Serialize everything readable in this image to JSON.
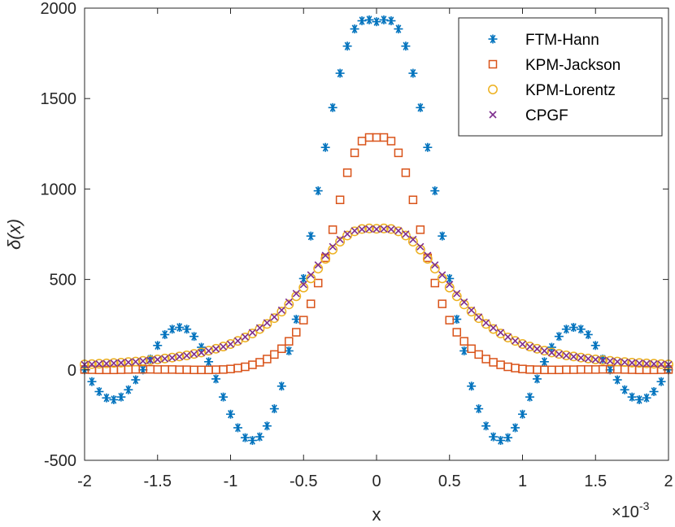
{
  "chart_data": {
    "type": "scatter",
    "title": "",
    "xlabel": "x",
    "ylabel": "δ(x)",
    "x_scale_label": "×10",
    "x_scale_exponent": "-3",
    "x_scale_factor": 0.001,
    "xlim": [
      -2,
      2
    ],
    "ylim": [
      -500,
      2000
    ],
    "xticks": [
      -2,
      -1.5,
      -1,
      -0.5,
      0,
      0.5,
      1,
      1.5,
      2
    ],
    "xtick_labels": [
      "-2",
      "-1.5",
      "-1",
      "-0.5",
      "0",
      "0.5",
      "1",
      "1.5",
      "2"
    ],
    "yticks": [
      -500,
      0,
      500,
      1000,
      1500,
      2000
    ],
    "ytick_labels": [
      "-500",
      "0",
      "500",
      "1000",
      "1500",
      "2000"
    ],
    "grid": false,
    "legend_position": "top-right",
    "series": [
      {
        "name": "FTM-Hann",
        "marker": "asterisk",
        "color": "#0072BD",
        "x": [
          -2.0,
          -1.95,
          -1.9,
          -1.85,
          -1.8,
          -1.75,
          -1.7,
          -1.65,
          -1.6,
          -1.55,
          -1.5,
          -1.45,
          -1.4,
          -1.35,
          -1.3,
          -1.25,
          -1.2,
          -1.15,
          -1.1,
          -1.05,
          -1.0,
          -0.95,
          -0.9,
          -0.85,
          -0.8,
          -0.75,
          -0.7,
          -0.65,
          -0.6,
          -0.55,
          -0.5,
          -0.45,
          -0.4,
          -0.35,
          -0.3,
          -0.25,
          -0.2,
          -0.15,
          -0.1,
          -0.05,
          0.0,
          0.05,
          0.1,
          0.15,
          0.2,
          0.25,
          0.3,
          0.35,
          0.4,
          0.45,
          0.5,
          0.55,
          0.6,
          0.65,
          0.7,
          0.75,
          0.8,
          0.85,
          0.9,
          0.95,
          1.0,
          1.05,
          1.1,
          1.15,
          1.2,
          1.25,
          1.3,
          1.35,
          1.4,
          1.45,
          1.5,
          1.55,
          1.6,
          1.65,
          1.7,
          1.75,
          1.8,
          1.85,
          1.9,
          1.95,
          2.0
        ],
        "y": [
          0,
          -65,
          -120,
          -155,
          -165,
          -150,
          -110,
          -55,
          0,
          60,
          135,
          195,
          225,
          235,
          225,
          185,
          125,
          45,
          -50,
          -150,
          -245,
          -320,
          -375,
          -390,
          -370,
          -310,
          -215,
          -90,
          105,
          280,
          505,
          740,
          990,
          1230,
          1450,
          1640,
          1790,
          1885,
          1930,
          1935,
          1925,
          1935,
          1930,
          1885,
          1790,
          1640,
          1450,
          1230,
          990,
          740,
          505,
          280,
          105,
          -90,
          -215,
          -310,
          -370,
          -390,
          -375,
          -320,
          -245,
          -150,
          -50,
          45,
          125,
          185,
          225,
          235,
          225,
          195,
          135,
          60,
          0,
          -55,
          -110,
          -150,
          -165,
          -155,
          -120,
          -65,
          0
        ]
      },
      {
        "name": "KPM-Jackson",
        "marker": "square",
        "color": "#D95319",
        "x": [
          -2.0,
          -1.95,
          -1.9,
          -1.85,
          -1.8,
          -1.75,
          -1.7,
          -1.65,
          -1.6,
          -1.55,
          -1.5,
          -1.45,
          -1.4,
          -1.35,
          -1.3,
          -1.25,
          -1.2,
          -1.15,
          -1.1,
          -1.05,
          -1.0,
          -0.95,
          -0.9,
          -0.85,
          -0.8,
          -0.75,
          -0.7,
          -0.65,
          -0.6,
          -0.55,
          -0.5,
          -0.45,
          -0.4,
          -0.35,
          -0.3,
          -0.25,
          -0.2,
          -0.15,
          -0.1,
          -0.05,
          0.0,
          0.05,
          0.1,
          0.15,
          0.2,
          0.25,
          0.3,
          0.35,
          0.4,
          0.45,
          0.5,
          0.55,
          0.6,
          0.65,
          0.7,
          0.75,
          0.8,
          0.85,
          0.9,
          0.95,
          1.0,
          1.05,
          1.1,
          1.15,
          1.2,
          1.25,
          1.3,
          1.35,
          1.4,
          1.45,
          1.5,
          1.55,
          1.6,
          1.65,
          1.7,
          1.75,
          1.8,
          1.85,
          1.9,
          1.95,
          2.0
        ],
        "y": [
          2,
          1,
          0,
          0,
          0,
          1,
          2,
          3,
          3,
          3,
          2,
          2,
          2,
          1,
          1,
          0,
          0,
          0,
          1,
          2,
          5,
          10,
          17,
          28,
          42,
          60,
          85,
          117,
          158,
          208,
          275,
          365,
          480,
          620,
          775,
          940,
          1090,
          1200,
          1265,
          1285,
          1285,
          1285,
          1265,
          1200,
          1090,
          940,
          775,
          620,
          480,
          365,
          275,
          208,
          158,
          117,
          85,
          60,
          42,
          28,
          17,
          10,
          5,
          2,
          1,
          0,
          0,
          0,
          1,
          1,
          2,
          2,
          2,
          3,
          3,
          3,
          2,
          1,
          0,
          0,
          0,
          1,
          2
        ]
      },
      {
        "name": "KPM-Lorentz",
        "marker": "circle",
        "color": "#EDB120",
        "x": [
          -2.0,
          -1.95,
          -1.9,
          -1.85,
          -1.8,
          -1.75,
          -1.7,
          -1.65,
          -1.6,
          -1.55,
          -1.5,
          -1.45,
          -1.4,
          -1.35,
          -1.3,
          -1.25,
          -1.2,
          -1.15,
          -1.1,
          -1.05,
          -1.0,
          -0.95,
          -0.9,
          -0.85,
          -0.8,
          -0.75,
          -0.7,
          -0.65,
          -0.6,
          -0.55,
          -0.5,
          -0.45,
          -0.4,
          -0.35,
          -0.3,
          -0.25,
          -0.2,
          -0.15,
          -0.1,
          -0.05,
          0.0,
          0.05,
          0.1,
          0.15,
          0.2,
          0.25,
          0.3,
          0.35,
          0.4,
          0.45,
          0.5,
          0.55,
          0.6,
          0.65,
          0.7,
          0.75,
          0.8,
          0.85,
          0.9,
          0.95,
          1.0,
          1.05,
          1.1,
          1.15,
          1.2,
          1.25,
          1.3,
          1.35,
          1.4,
          1.45,
          1.5,
          1.55,
          1.6,
          1.65,
          1.7,
          1.75,
          1.8,
          1.85,
          1.9,
          1.95,
          2.0
        ],
        "y": [
          30,
          32,
          34,
          36,
          38,
          40,
          43,
          46,
          50,
          54,
          58,
          63,
          68,
          74,
          80,
          88,
          96,
          106,
          117,
          129,
          143,
          160,
          179,
          201,
          226,
          254,
          286,
          322,
          362,
          407,
          455,
          506,
          560,
          614,
          665,
          709,
          743,
          766,
          779,
          782,
          780,
          782,
          779,
          766,
          743,
          709,
          665,
          614,
          560,
          506,
          455,
          407,
          362,
          322,
          286,
          254,
          226,
          201,
          179,
          160,
          143,
          129,
          117,
          106,
          96,
          88,
          80,
          74,
          68,
          63,
          58,
          54,
          50,
          46,
          43,
          40,
          38,
          36,
          34,
          32,
          30
        ]
      },
      {
        "name": "CPGF",
        "marker": "cross",
        "color": "#7E2F8E",
        "x": [
          -2.0,
          -1.95,
          -1.9,
          -1.85,
          -1.8,
          -1.75,
          -1.7,
          -1.65,
          -1.6,
          -1.55,
          -1.5,
          -1.45,
          -1.4,
          -1.35,
          -1.3,
          -1.25,
          -1.2,
          -1.15,
          -1.1,
          -1.05,
          -1.0,
          -0.95,
          -0.9,
          -0.85,
          -0.8,
          -0.75,
          -0.7,
          -0.65,
          -0.6,
          -0.55,
          -0.5,
          -0.45,
          -0.4,
          -0.35,
          -0.3,
          -0.25,
          -0.2,
          -0.15,
          -0.1,
          -0.05,
          0.0,
          0.05,
          0.1,
          0.15,
          0.2,
          0.25,
          0.3,
          0.35,
          0.4,
          0.45,
          0.5,
          0.55,
          0.6,
          0.65,
          0.7,
          0.75,
          0.8,
          0.85,
          0.9,
          0.95,
          1.0,
          1.05,
          1.1,
          1.15,
          1.2,
          1.25,
          1.3,
          1.35,
          1.4,
          1.45,
          1.5,
          1.55,
          1.6,
          1.65,
          1.7,
          1.75,
          1.8,
          1.85,
          1.9,
          1.95,
          2.0
        ],
        "y": [
          29,
          31,
          33,
          35,
          37,
          39,
          42,
          45,
          49,
          53,
          57,
          62,
          67,
          73,
          79,
          87,
          95,
          105,
          116,
          128,
          142,
          160,
          182,
          206,
          232,
          260,
          292,
          330,
          375,
          422,
          472,
          525,
          580,
          633,
          681,
          721,
          751,
          769,
          777,
          779,
          778,
          779,
          777,
          769,
          751,
          721,
          681,
          633,
          580,
          525,
          472,
          422,
          375,
          330,
          292,
          260,
          232,
          206,
          182,
          160,
          142,
          128,
          116,
          105,
          95,
          87,
          79,
          73,
          67,
          62,
          57,
          53,
          49,
          45,
          42,
          39,
          37,
          35,
          33,
          31,
          29
        ]
      }
    ]
  }
}
